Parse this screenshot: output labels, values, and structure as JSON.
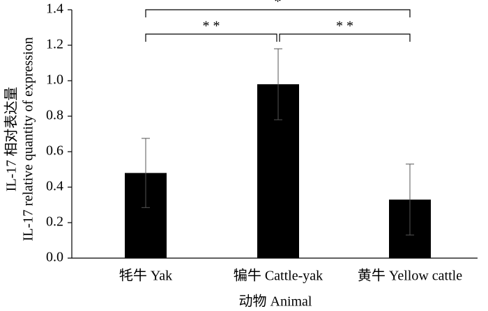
{
  "chart_data": {
    "type": "bar",
    "categories": [
      "牦牛 Yak",
      "犏牛 Cattle-yak",
      "黄牛 Yellow cattle"
    ],
    "values": [
      0.48,
      0.98,
      0.33
    ],
    "errors": [
      0.195,
      0.2,
      0.2
    ],
    "color": "#000000",
    "xlabel": "动物 Animal",
    "ylabel": [
      "IL-17 相对表达量",
      "IL-17 relative quantity of expression"
    ],
    "ylim": [
      0,
      1.4
    ],
    "yticks": [
      {
        "value": 0,
        "label": "0.0"
      },
      0.2,
      0.4,
      0.6,
      0.8,
      {
        "value": 1,
        "label": "1.0"
      },
      1.2,
      1.4
    ],
    "significance": [
      {
        "from": "牦牛 Yak",
        "to": "犏牛 Cattle-yak",
        "label": "* *"
      },
      {
        "from": "犏牛 Cattle-yak",
        "to": "黄牛 Yellow cattle",
        "label": "* *"
      },
      {
        "from": "牦牛 Yak",
        "to": "黄牛 Yellow cattle",
        "label": "*"
      }
    ]
  }
}
